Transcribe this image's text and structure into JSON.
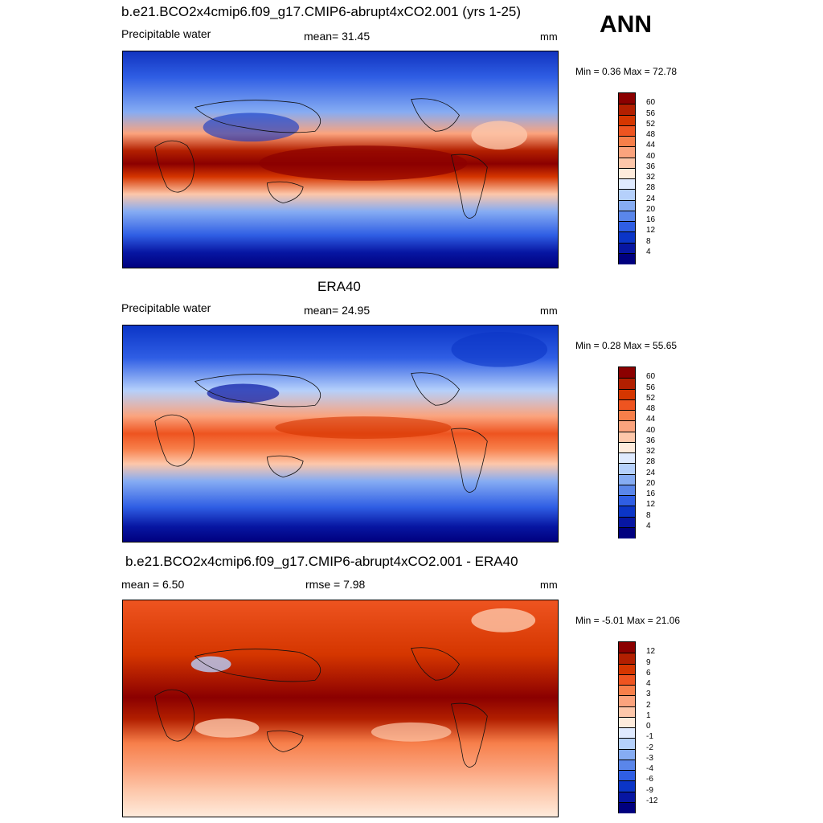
{
  "season": "ANN",
  "panels": [
    {
      "title": "b.e21.BCO2x4cmip6.f09_g17.CMIP6-abrupt4xCO2.001 (yrs 1-25)",
      "left": "Precipitable water",
      "center": "mean=  31.45",
      "units": "mm",
      "minmax": "Min =   0.36 Max =  72.78",
      "levels": [
        "60",
        "56",
        "52",
        "48",
        "44",
        "40",
        "36",
        "32",
        "28",
        "24",
        "20",
        "16",
        "12",
        "8",
        "4"
      ],
      "colors": [
        "#8b0000",
        "#b21f00",
        "#d53600",
        "#ee5420",
        "#f77f4a",
        "#fba37d",
        "#fdc7aa",
        "#feebdc",
        "#dfeaff",
        "#b5d0fb",
        "#86acf3",
        "#5a86ea",
        "#2f5ee4",
        "#0b35c7",
        "#0716a2",
        "#00007f"
      ]
    },
    {
      "title": "ERA40",
      "left": "Precipitable water",
      "center": "mean=  24.95",
      "units": "mm",
      "minmax": "Min =   0.28 Max =  55.65",
      "levels": [
        "60",
        "56",
        "52",
        "48",
        "44",
        "40",
        "36",
        "32",
        "28",
        "24",
        "20",
        "16",
        "12",
        "8",
        "4"
      ],
      "colors": [
        "#8b0000",
        "#b21f00",
        "#d53600",
        "#ee5420",
        "#f77f4a",
        "#fba37d",
        "#fdc7aa",
        "#feebdc",
        "#dfeaff",
        "#b5d0fb",
        "#86acf3",
        "#5a86ea",
        "#2f5ee4",
        "#0b35c7",
        "#0716a2",
        "#00007f"
      ]
    },
    {
      "title": "b.e21.BCO2x4cmip6.f09_g17.CMIP6-abrupt4xCO2.001 - ERA40",
      "left": "mean =   6.50",
      "center": "rmse =   7.98",
      "units": "mm",
      "minmax": "Min =  -5.01 Max =  21.06",
      "levels": [
        "12",
        "9",
        "6",
        "4",
        "3",
        "2",
        "1",
        "0",
        "-1",
        "-2",
        "-3",
        "-4",
        "-6",
        "-9",
        "-12"
      ],
      "colors": [
        "#8b0000",
        "#b21f00",
        "#d53600",
        "#ee5420",
        "#f77f4a",
        "#fba37d",
        "#fdc7aa",
        "#feebdc",
        "#dfeaff",
        "#b5d0fb",
        "#86acf3",
        "#5a86ea",
        "#2f5ee4",
        "#0b35c7",
        "#0716a2",
        "#00007f"
      ]
    }
  ]
}
